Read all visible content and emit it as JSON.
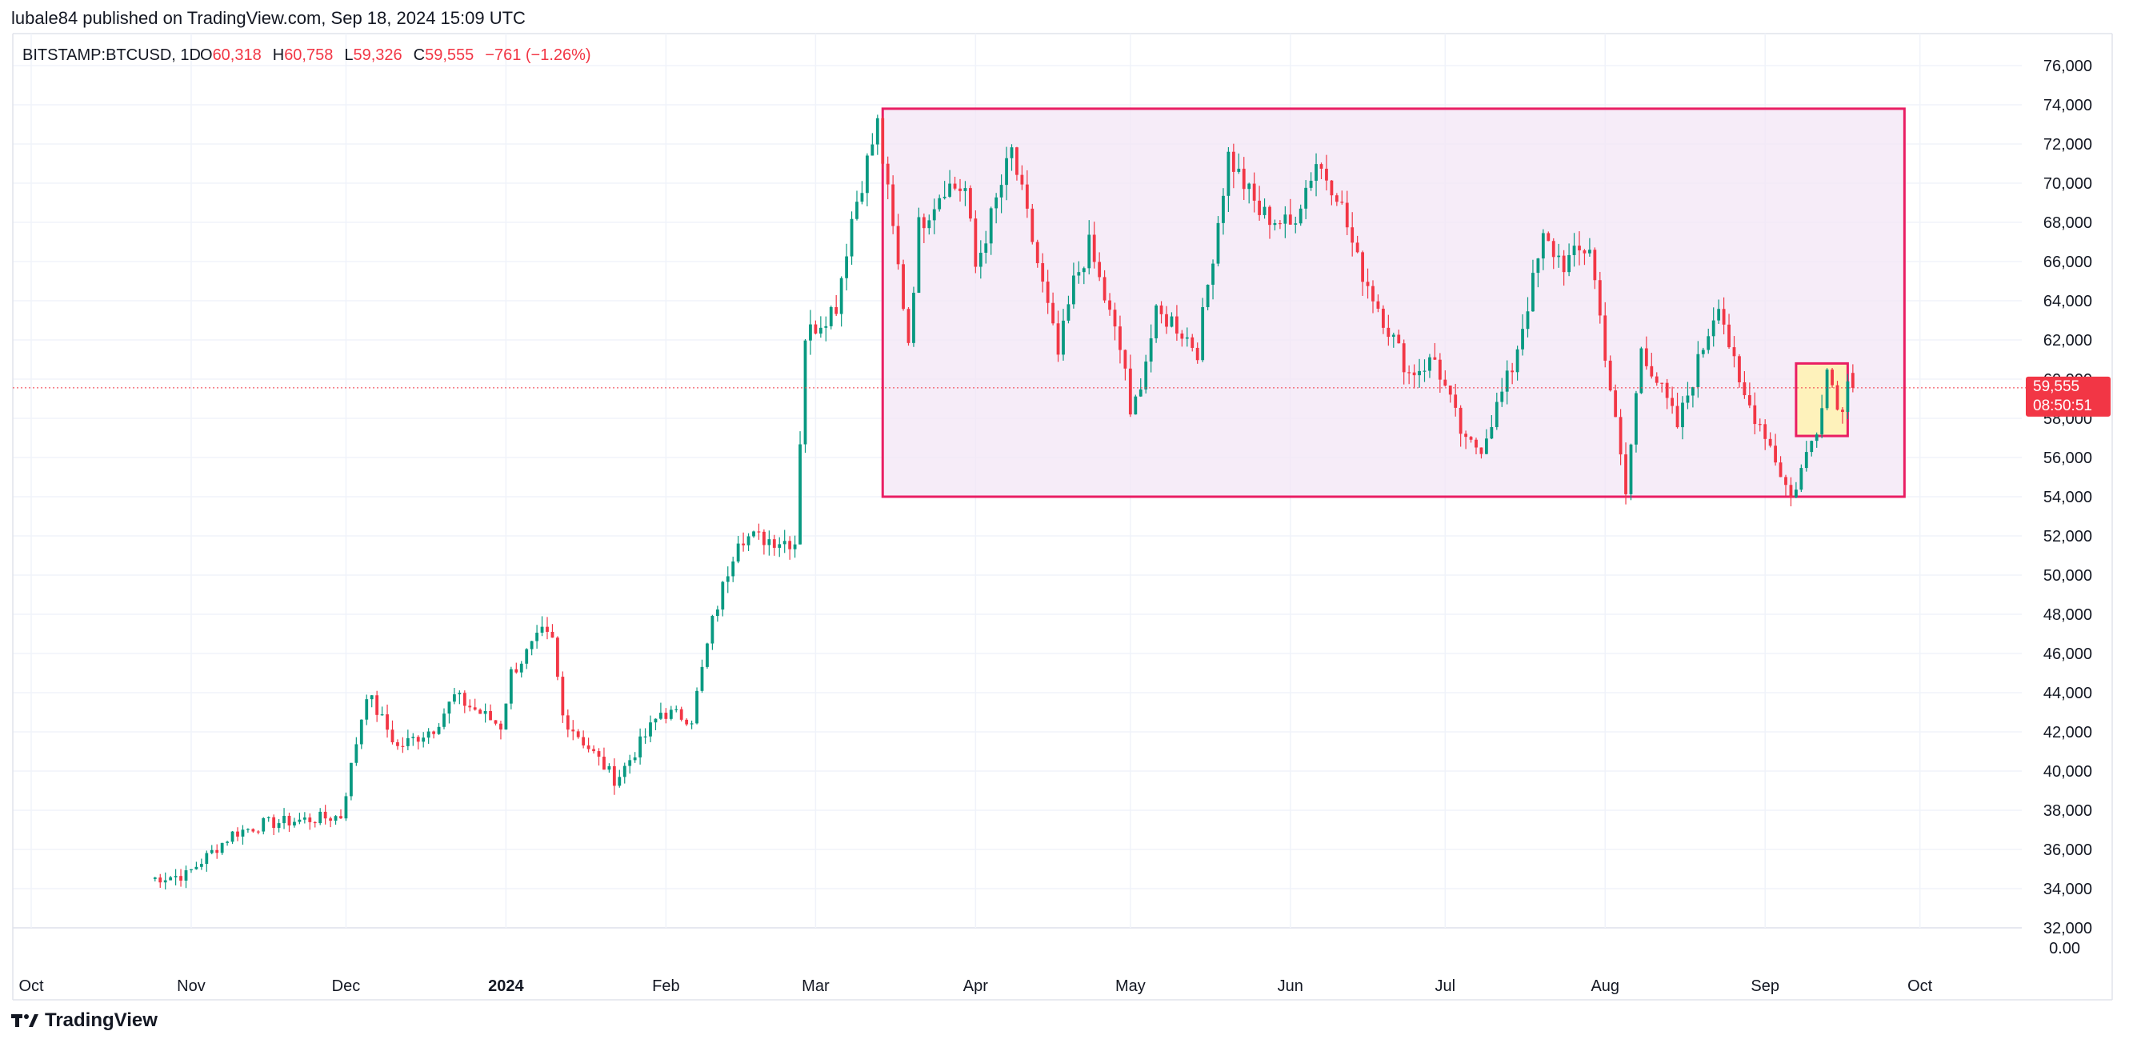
{
  "header": {
    "publisher": "lubale84 published on TradingView.com, Sep 18, 2024 15:09 UTC"
  },
  "legend": {
    "symbol": "BITSTAMP:BTCUSD, 1D",
    "o_label": "O",
    "o_value": "60,318",
    "h_label": "H",
    "h_value": "60,758",
    "l_label": "L",
    "l_value": "59,326",
    "c_label": "C",
    "c_value": "59,555",
    "change": "−761 (−1.26%)"
  },
  "price_label": {
    "price": "59,555",
    "countdown": "08:50:51"
  },
  "footer": {
    "brand": "TradingView"
  },
  "colors": {
    "up": "#089981",
    "down": "#f23645",
    "range_box": "#e91e63",
    "range_fill": "#f3e5f5",
    "small_box_fill": "#fff3b0",
    "grid": "#f0f3fa"
  },
  "chart_data": {
    "type": "candlestick",
    "y_ticks": [
      "76,000",
      "74,000",
      "72,000",
      "70,000",
      "68,000",
      "66,000",
      "64,000",
      "62,000",
      "60,000",
      "58,000",
      "56,000",
      "54,000",
      "52,000",
      "50,000",
      "48,000",
      "46,000",
      "44,000",
      "42,000",
      "40,000",
      "38,000",
      "36,000",
      "34,000",
      "32,000"
    ],
    "y_zero_label": "0.00",
    "x_ticks": [
      "Oct",
      "Nov",
      "Dec",
      "2024",
      "Feb",
      "Mar",
      "Apr",
      "May",
      "Jun",
      "Jul",
      "Aug",
      "Sep",
      "Oct"
    ],
    "ylim": [
      31000,
      77000
    ],
    "start_date": "2023-10-24",
    "anchors": [
      [
        "2023-10-24",
        34500
      ],
      [
        "2023-10-31",
        34700
      ],
      [
        "2023-11-09",
        36800
      ],
      [
        "2023-11-15",
        37300
      ],
      [
        "2023-11-30",
        37700
      ],
      [
        "2023-12-05",
        44000
      ],
      [
        "2023-12-11",
        41200
      ],
      [
        "2023-12-18",
        42200
      ],
      [
        "2023-12-22",
        43800
      ],
      [
        "2023-12-31",
        42300
      ],
      [
        "2024-01-02",
        45000
      ],
      [
        "2024-01-08",
        47000
      ],
      [
        "2024-01-10",
        46600
      ],
      [
        "2024-01-12",
        42800
      ],
      [
        "2024-01-22",
        39600
      ],
      [
        "2024-01-23",
        39800
      ],
      [
        "2024-01-31",
        43000
      ],
      [
        "2024-02-06",
        42700
      ],
      [
        "2024-02-10",
        47600
      ],
      [
        "2024-02-15",
        52000
      ],
      [
        "2024-02-26",
        51700
      ],
      [
        "2024-02-28",
        62200
      ],
      [
        "2024-03-05",
        63800
      ],
      [
        "2024-03-08",
        68200
      ],
      [
        "2024-03-13",
        73000
      ],
      [
        "2024-03-15",
        69400
      ],
      [
        "2024-03-19",
        62000
      ],
      [
        "2024-03-21",
        67800
      ],
      [
        "2024-03-26",
        69900
      ],
      [
        "2024-03-30",
        69700
      ],
      [
        "2024-04-01",
        65700
      ],
      [
        "2024-04-08",
        71600
      ],
      [
        "2024-04-12",
        67100
      ],
      [
        "2024-04-17",
        61200
      ],
      [
        "2024-04-20",
        64900
      ],
      [
        "2024-04-23",
        66800
      ],
      [
        "2024-04-30",
        60600
      ],
      [
        "2024-05-01",
        57800
      ],
      [
        "2024-05-06",
        63200
      ],
      [
        "2024-05-09",
        63000
      ],
      [
        "2024-05-14",
        61500
      ],
      [
        "2024-05-20",
        71400
      ],
      [
        "2024-05-26",
        68500
      ],
      [
        "2024-06-01",
        67800
      ],
      [
        "2024-06-06",
        71100
      ],
      [
        "2024-06-10",
        69600
      ],
      [
        "2024-06-14",
        66000
      ],
      [
        "2024-06-24",
        60300
      ],
      [
        "2024-06-29",
        61000
      ],
      [
        "2024-07-05",
        56600
      ],
      [
        "2024-07-08",
        56600
      ],
      [
        "2024-07-14",
        60600
      ],
      [
        "2024-07-20",
        67100
      ],
      [
        "2024-07-24",
        65900
      ],
      [
        "2024-07-29",
        66800
      ],
      [
        "2024-08-05",
        54100
      ],
      [
        "2024-08-08",
        61700
      ],
      [
        "2024-08-15",
        57600
      ],
      [
        "2024-08-23",
        64100
      ],
      [
        "2024-08-27",
        59500
      ],
      [
        "2024-09-01",
        57300
      ],
      [
        "2024-09-06",
        53900
      ],
      [
        "2024-09-11",
        57600
      ],
      [
        "2024-09-13",
        60500
      ],
      [
        "2024-09-16",
        58200
      ],
      [
        "2024-09-17",
        60318
      ],
      [
        "2024-09-18",
        59555
      ]
    ],
    "last_candle": {
      "open": 60318,
      "high": 60758,
      "low": 59326,
      "close": 59555
    },
    "annotations": [
      {
        "type": "rectangle",
        "from": "2024-03-14",
        "to": "2024-09-28",
        "top": 73800,
        "bottom": 54000
      },
      {
        "type": "rectangle",
        "from": "2024-09-07",
        "to": "2024-09-17",
        "top": 60800,
        "bottom": 57100
      }
    ],
    "last_price_line": 59555
  }
}
